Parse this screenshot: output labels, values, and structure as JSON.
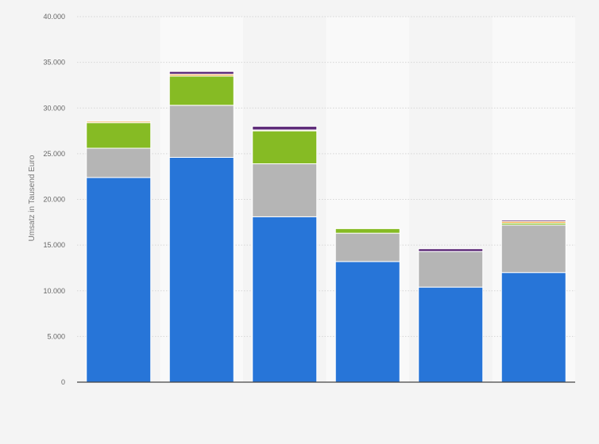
{
  "chart_data": {
    "type": "bar",
    "stacked": true,
    "ylabel": "Umsatz in Tausend Euro",
    "ylim": [
      0,
      40000
    ],
    "yticks": [
      0,
      5000,
      10000,
      15000,
      20000,
      25000,
      30000,
      35000,
      40000
    ],
    "ytick_labels": [
      "0",
      "5.000",
      "10.000",
      "15.000",
      "20.000",
      "25.000",
      "30.000",
      "35.000",
      "40.000"
    ],
    "grid": true,
    "legend": "none",
    "num_bars": 6,
    "series": [
      {
        "color": "#2775d8",
        "values": [
          22400,
          24600,
          18100,
          13200,
          10400,
          12000
        ]
      },
      {
        "color": "#b5b5b5",
        "values": [
          3200,
          5700,
          5800,
          3100,
          3900,
          5200
        ]
      },
      {
        "color": "#86bb24",
        "values": [
          2800,
          3200,
          3600,
          500,
          0,
          200
        ]
      },
      {
        "color": "#f2a941",
        "values": [
          150,
          200,
          100,
          0,
          0,
          200
        ]
      },
      {
        "color": "#5d2a78",
        "values": [
          0,
          300,
          400,
          0,
          300,
          150
        ]
      }
    ]
  }
}
